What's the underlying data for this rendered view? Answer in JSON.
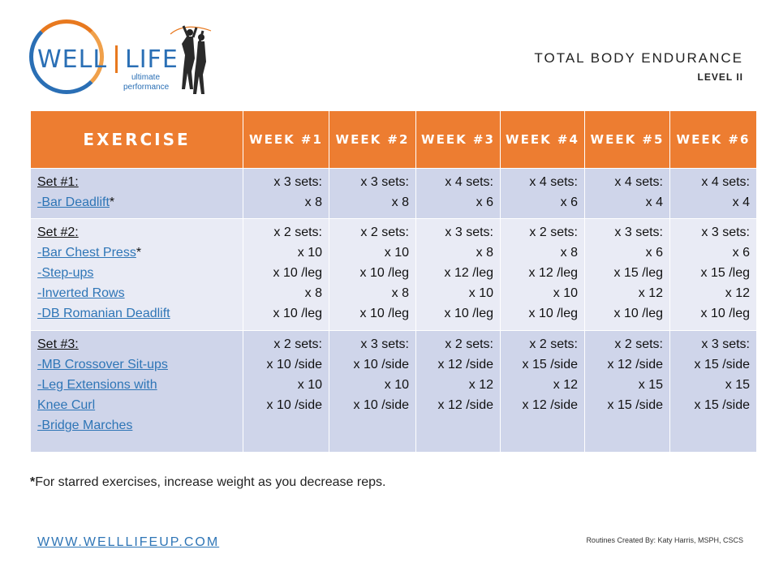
{
  "logo": {
    "word_left": "WELL",
    "word_right": "LIFE",
    "tag_line1": "ultimate",
    "tag_line2": "performance"
  },
  "header": {
    "title": "TOTAL BODY ENDURANCE",
    "level": "LEVEL II"
  },
  "table": {
    "exercise_header": "EXERCISE",
    "weeks": [
      "WEEK #1",
      "WEEK #2",
      "WEEK #3",
      "WEEK #4",
      "WEEK #5",
      "WEEK #6"
    ],
    "sets": [
      {
        "label": "Set #1:",
        "exercises": [
          {
            "name": "-Bar Deadlift",
            "star": "*"
          }
        ],
        "week_values": [
          [
            "x 3 sets:",
            "x 8"
          ],
          [
            "x 3 sets:",
            "x 8"
          ],
          [
            "x 4 sets:",
            "x 6"
          ],
          [
            "x 4 sets:",
            "x 6"
          ],
          [
            "x 4 sets:",
            "x 4"
          ],
          [
            "x 4 sets:",
            "x 4"
          ]
        ]
      },
      {
        "label": "Set #2:",
        "exercises": [
          {
            "name": "-Bar Chest Press",
            "star": "*"
          },
          {
            "name": "-Step-ups",
            "star": ""
          },
          {
            "name": "-Inverted Rows",
            "star": ""
          },
          {
            "name": "-DB Romanian Deadlift",
            "star": ""
          }
        ],
        "week_values": [
          [
            "x 2 sets:",
            "x 10",
            "x 10 /leg",
            "x 8",
            "x 10 /leg"
          ],
          [
            "x 2 sets:",
            "x 10",
            "x 10 /leg",
            "x 8",
            "x 10 /leg"
          ],
          [
            "x 3 sets:",
            "x 8",
            "x 12 /leg",
            "x 10",
            "x 10 /leg"
          ],
          [
            "x 2 sets:",
            "x 8",
            "x 12 /leg",
            "x 10",
            "x 10 /leg"
          ],
          [
            "x 3 sets:",
            "x 6",
            "x 15 /leg",
            "x 12",
            "x 10 /leg"
          ],
          [
            "x 3 sets:",
            "x 6",
            "x 15 /leg",
            "x 12",
            "x 10 /leg"
          ]
        ]
      },
      {
        "label": "Set #3:",
        "exercises": [
          {
            "name": "-MB Crossover Sit-ups",
            "star": ""
          },
          {
            "name": "-Leg Extensions with",
            "star": ""
          },
          {
            "name": "Knee Curl",
            "star": ""
          },
          {
            "name": "-Bridge Marches",
            "star": ""
          }
        ],
        "week_values": [
          [
            "x 2 sets:",
            "x 10 /side",
            "x 10",
            "x 10 /side"
          ],
          [
            "x 3 sets:",
            "x 10 /side",
            "x 10",
            "x 10 /side"
          ],
          [
            "x 2 sets:",
            "x 12 /side",
            "x 12",
            "x 12 /side"
          ],
          [
            "x 2 sets:",
            "x 15 /side",
            "x 12",
            "x 12 /side"
          ],
          [
            "x 2 sets:",
            "x 12 /side",
            "x 15",
            "x 15 /side"
          ],
          [
            "x 3 sets:",
            "x 15 /side",
            "x 15",
            "x 15 /side"
          ]
        ]
      }
    ]
  },
  "footnote": {
    "star": "*",
    "text": "For starred exercises, increase weight as you decrease reps."
  },
  "footer": {
    "website": "WWW.WELLLIFEUP.COM",
    "credit": "Routines Created By: Katy Harris, MSPH, CSCS"
  },
  "colors": {
    "header_orange": "#ed7d31",
    "row_dark": "#cfd5ea",
    "row_light": "#e9ebf5",
    "link_blue": "#2e75b6"
  }
}
